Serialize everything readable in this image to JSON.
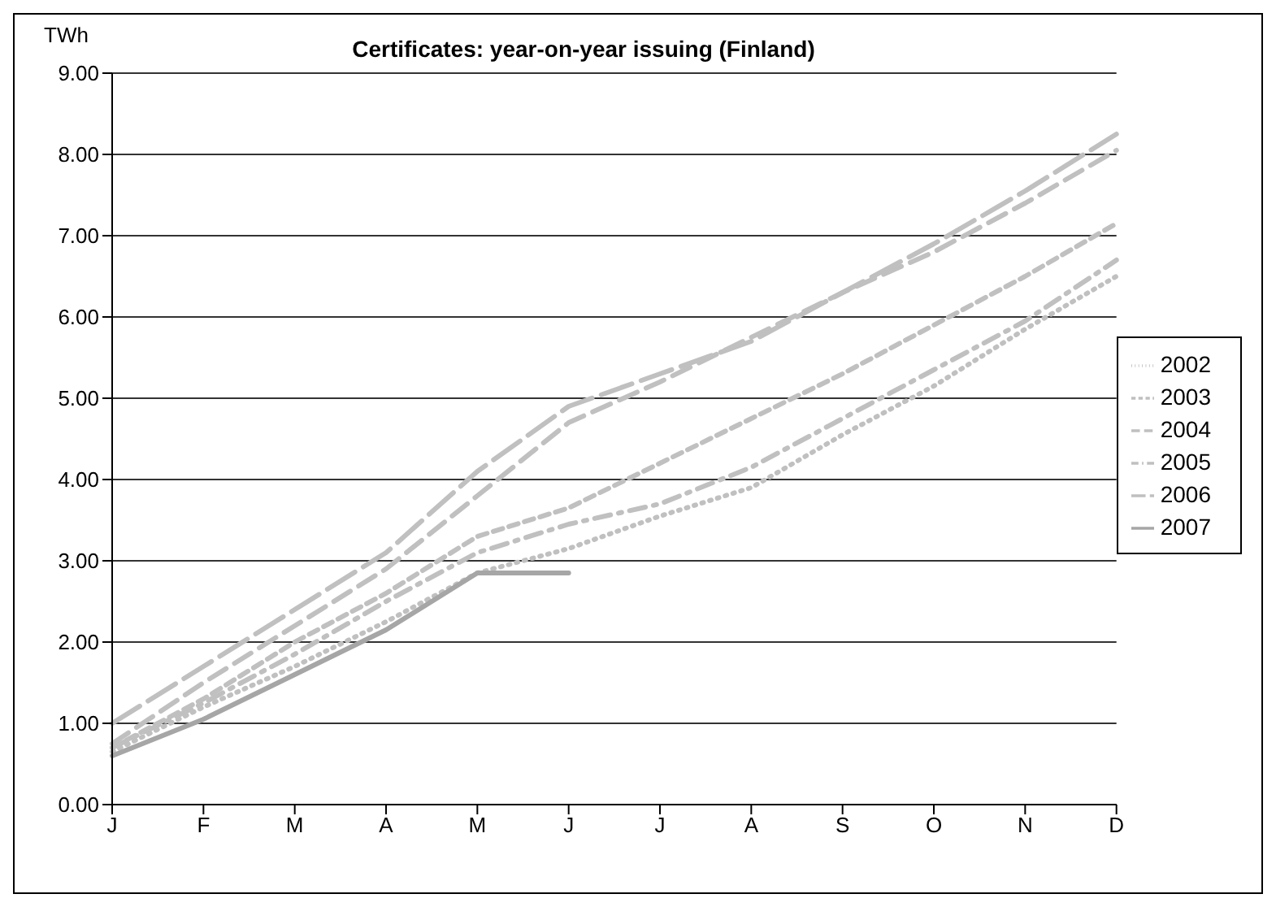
{
  "chart_data": {
    "type": "line",
    "title": "Certificates: year-on-year issuing (Finland)",
    "ylabel": "TWh",
    "categories": [
      "J",
      "F",
      "M",
      "A",
      "M",
      "J",
      "J",
      "A",
      "S",
      "O",
      "N",
      "D"
    ],
    "series": [
      {
        "name": "2002",
        "color": "#c0c0c0",
        "line_style": "dotted",
        "values": [
          0.65,
          1.2,
          1.7,
          2.25,
          2.85,
          3.15,
          3.55,
          3.9,
          4.55,
          5.15,
          5.85,
          6.5
        ]
      },
      {
        "name": "2003",
        "color": "#c0c0c0",
        "line_style": "dashed",
        "values": [
          0.7,
          1.3,
          2.0,
          2.6,
          3.3,
          3.65,
          4.2,
          4.75,
          5.3,
          5.9,
          6.5,
          7.15
        ]
      },
      {
        "name": "2004",
        "color": "#c0c0c0",
        "line_style": "dashed",
        "values": [
          0.75,
          1.5,
          2.2,
          2.9,
          3.8,
          4.7,
          5.2,
          5.75,
          6.3,
          6.8,
          7.4,
          8.05
        ]
      },
      {
        "name": "2005",
        "color": "#c0c0c0",
        "line_style": "dashed",
        "values": [
          0.7,
          1.25,
          1.85,
          2.5,
          3.1,
          3.45,
          3.7,
          4.15,
          4.75,
          5.35,
          5.95,
          6.7
        ]
      },
      {
        "name": "2006",
        "color": "#c0c0c0",
        "line_style": "dashed",
        "values": [
          1.0,
          1.7,
          2.4,
          3.1,
          4.1,
          4.9,
          5.3,
          5.7,
          6.3,
          6.9,
          7.55,
          8.25
        ]
      },
      {
        "name": "2007",
        "color": "#a6a6a6",
        "line_style": "solid",
        "values": [
          0.6,
          1.05,
          1.6,
          2.15,
          2.85,
          2.85,
          null,
          null,
          null,
          null,
          null,
          null
        ]
      }
    ],
    "ylim": [
      0,
      9
    ],
    "yticks": [
      {
        "value": 0,
        "label": "0.00"
      },
      {
        "value": 1,
        "label": "1.00"
      },
      {
        "value": 2,
        "label": "2.00"
      },
      {
        "value": 3,
        "label": "3.00"
      },
      {
        "value": 4,
        "label": "4.00"
      },
      {
        "value": 5,
        "label": "5.00"
      },
      {
        "value": 6,
        "label": "6.00"
      },
      {
        "value": 7,
        "label": "7.00"
      },
      {
        "value": 8,
        "label": "8.00"
      },
      {
        "value": 9,
        "label": "9.00"
      }
    ],
    "grid": "y",
    "legend": "right",
    "marker": "none"
  }
}
